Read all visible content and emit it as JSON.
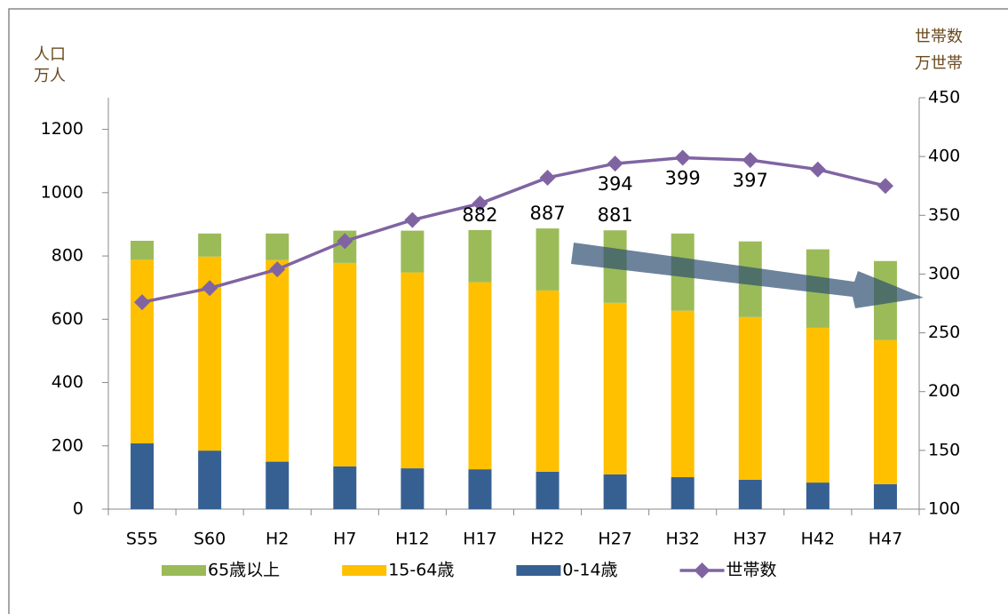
{
  "chart_data": {
    "type": "bar_line",
    "y_label": [
      "人口",
      "万人"
    ],
    "y2_label": [
      "世帯数",
      "万世帯"
    ],
    "categories": [
      "S55",
      "S60",
      "H2",
      "H7",
      "H12",
      "H17",
      "H22",
      "H27",
      "H32",
      "H37",
      "H42",
      "H47"
    ],
    "series": [
      {
        "name": "65歳以上",
        "type": "bar",
        "color": "#9bbb59",
        "values": [
          60,
          73,
          84,
          102,
          132,
          165,
          196,
          229,
          244,
          239,
          248,
          250
        ]
      },
      {
        "name": "15-64歳",
        "type": "bar",
        "color": "#ffc000",
        "values": [
          580,
          613,
          637,
          643,
          619,
          591,
          573,
          542,
          526,
          514,
          489,
          455
        ]
      },
      {
        "name": "0-14歳",
        "type": "bar",
        "color": "#376092",
        "values": [
          208,
          185,
          150,
          135,
          129,
          126,
          118,
          110,
          101,
          93,
          84,
          79
        ]
      },
      {
        "name": "世帯数",
        "type": "line",
        "axis": "y2",
        "color": "#8064a2",
        "values": [
          276,
          288,
          304,
          328,
          346,
          360,
          382,
          394,
          399,
          397,
          389,
          375
        ],
        "value_labels": [
          null,
          null,
          null,
          null,
          null,
          null,
          null,
          "394",
          "399",
          "397",
          null,
          null
        ]
      }
    ],
    "annotations": [
      {
        "text": "882",
        "category": "H17"
      },
      {
        "text": "887",
        "category": "H22"
      },
      {
        "text": "881",
        "category": "H27"
      }
    ],
    "ylim": [
      0,
      1300
    ],
    "yticks": [
      0,
      200,
      400,
      600,
      800,
      1000,
      1200
    ],
    "y2lim": [
      100,
      450
    ],
    "y2ticks": [
      100,
      150,
      200,
      250,
      300,
      350,
      400,
      450
    ],
    "grid": false
  }
}
